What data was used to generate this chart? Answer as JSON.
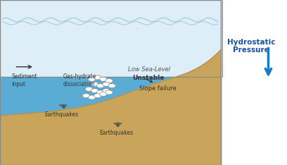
{
  "fig_width": 4.08,
  "fig_height": 2.34,
  "dpi": 100,
  "bg_color": "#ffffff",
  "ocean_color": "#5bacd4",
  "ocean_light_color": "#a8d4e8",
  "seafloor_color": "#c8a55a",
  "seafloor_dark": "#b8924a",
  "water_top_color": "#ddeef8",
  "wave_color": "#aaccdd",
  "border_color": "#888888",
  "hydrostatic_text": "Hydrostatic\nPressure",
  "hydrostatic_color": "#1a4fa0",
  "arrow_color": "#1a7ac8",
  "low_sea_level_text": "Low Sea-Level",
  "sediment_text": "Sediment\ninput",
  "gas_hydrate_text": "Gas-hydrate\ndissociation",
  "unstable_text": "Unstable",
  "slope_failure_text": "Slope failure",
  "earthquakes_text1": "Earthquakes",
  "earthquakes_text2": "Earthquakes",
  "text_color": "#333333",
  "bubble_color": "#ffffff",
  "bubble_edge": "#888888"
}
